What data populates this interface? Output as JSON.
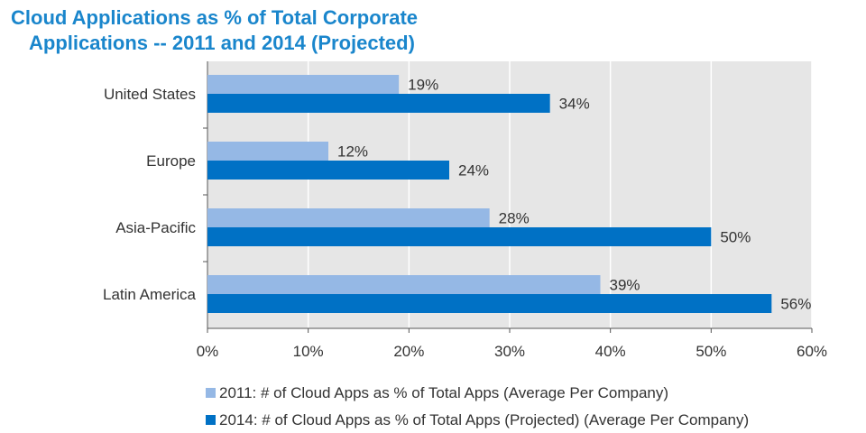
{
  "chart_data": {
    "type": "bar",
    "orientation": "horizontal",
    "title_lines": [
      "Cloud Applications as % of Total Corporate",
      "Applications -- 2011 and 2014 (Projected)"
    ],
    "categories": [
      "United States",
      "Europe",
      "Asia-Pacific",
      "Latin America"
    ],
    "series": [
      {
        "name": "2011: #  of Cloud Apps as % of Total Apps (Average Per Company)",
        "values": [
          19,
          12,
          28,
          39
        ],
        "labels": [
          "19%",
          "12%",
          "28%",
          "39%"
        ],
        "color": "#95b8e5"
      },
      {
        "name": "2014: # of Cloud Apps as % of Total Apps (Projected) (Average Per Company)",
        "values": [
          34,
          24,
          50,
          56
        ],
        "labels": [
          "34%",
          "24%",
          "50%",
          "56%"
        ],
        "color": "#0071c5"
      }
    ],
    "xlim": [
      0,
      60
    ],
    "xticks": [
      0,
      10,
      20,
      30,
      40,
      50,
      60
    ],
    "xtick_labels": [
      "0%",
      "10%",
      "20%",
      "30%",
      "40%",
      "50%",
      "60%"
    ],
    "grid": true,
    "plot_background": "#e6e6e6",
    "legend_position": "bottom"
  }
}
